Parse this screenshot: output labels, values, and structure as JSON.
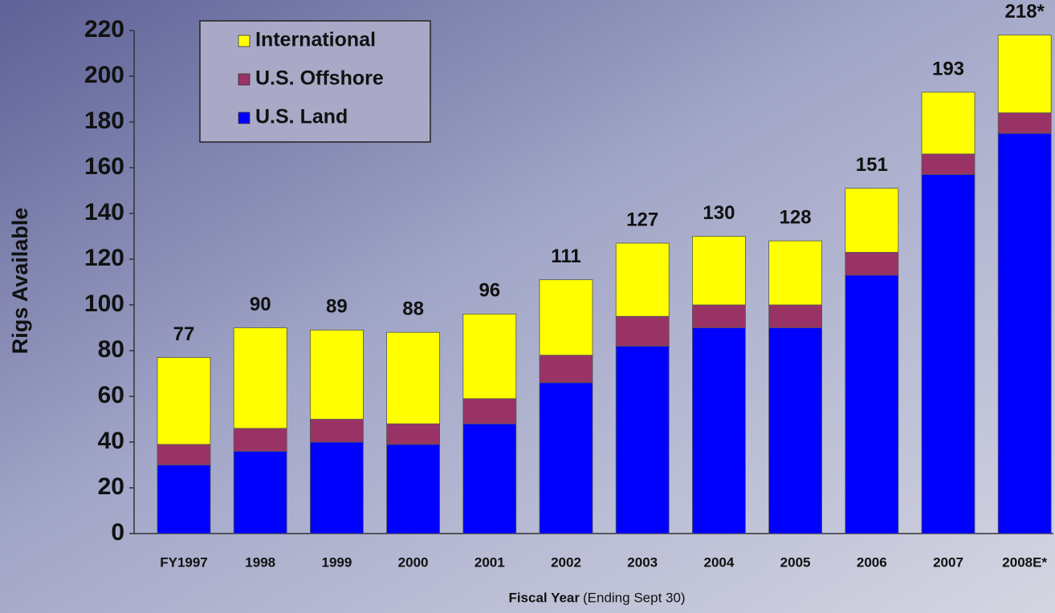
{
  "chart_data": {
    "type": "stacked_bar",
    "y_label": "Rigs Available",
    "x_label": "Fiscal Year",
    "x_label_note": "(Ending Sept 30)",
    "categories": [
      "FY1997",
      "1998",
      "1999",
      "2000",
      "2001",
      "2002",
      "2003",
      "2004",
      "2005",
      "2006",
      "2007",
      "2008E*"
    ],
    "series": [
      {
        "name": "U.S. Land",
        "color": "#0000ff",
        "values": [
          30,
          36,
          40,
          39,
          48,
          66,
          82,
          90,
          90,
          113,
          157,
          175
        ]
      },
      {
        "name": "U.S. Offshore",
        "color": "#993366",
        "values": [
          9,
          10,
          10,
          9,
          11,
          12,
          13,
          10,
          10,
          10,
          9,
          9
        ]
      },
      {
        "name": "International",
        "color": "#ffff00",
        "values": [
          38,
          44,
          39,
          40,
          37,
          33,
          32,
          30,
          28,
          28,
          27,
          34
        ]
      }
    ],
    "totals": {
      "values": [
        77,
        90,
        89,
        88,
        96,
        111,
        127,
        130,
        128,
        151,
        193,
        218
      ],
      "value_labels": [
        "77",
        "90",
        "89",
        "88",
        "96",
        "111",
        "127",
        "130",
        "128",
        "151",
        "193",
        "218*"
      ]
    },
    "ylim": [
      0,
      220
    ],
    "yticks": [
      0,
      20,
      40,
      60,
      80,
      100,
      120,
      140,
      160,
      180,
      200,
      220
    ],
    "legend": "upper-left"
  }
}
